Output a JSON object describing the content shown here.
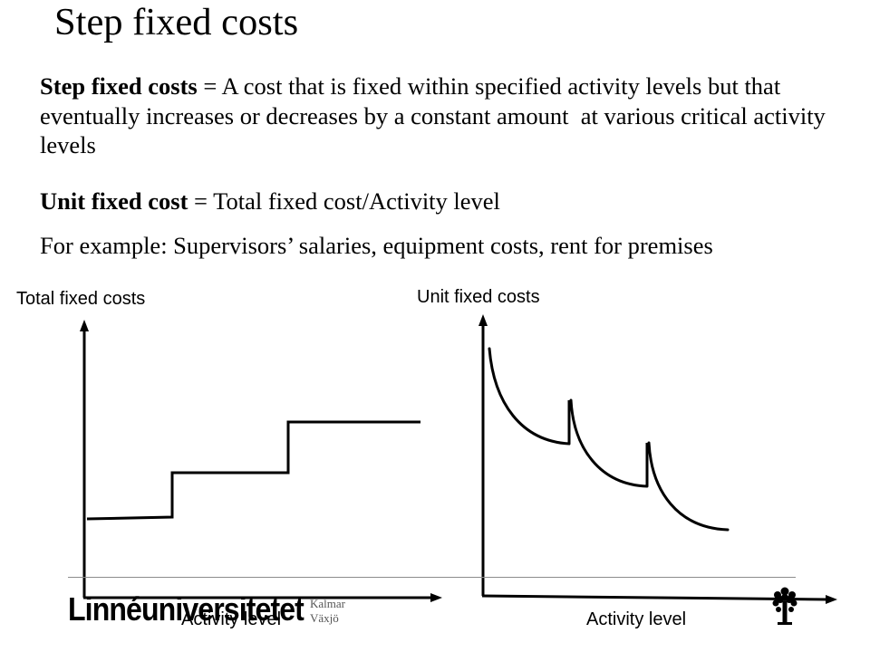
{
  "slide": {
    "title": "Step fixed costs"
  },
  "definition": {
    "term": "Step fixed costs",
    "line1": " = A cost that is fixed within specified activity levels but that",
    "line2": "eventually increases or decreases by a constant amount  at various critical activity",
    "line3": "levels"
  },
  "unit_cost": {
    "term": "Unit fixed cost",
    "text": " = Total fixed cost/Activity level"
  },
  "example": {
    "text": "For example: Supervisors’ salaries, equipment costs, rent for premises"
  },
  "left_chart": {
    "y_label": "Total fixed costs",
    "x_label": "Activity level",
    "shape": "step-increasing"
  },
  "right_chart": {
    "y_label": "Unit fixed costs",
    "x_label": "Activity level",
    "shape": "sawtooth-decreasing"
  },
  "footer": {
    "logo_text": "Linnéuniversitetet",
    "campus_1": "Kalmar",
    "campus_2": "Växjö",
    "logo_icon": "tree-icon"
  },
  "colors": {
    "text": "#000000",
    "divider": "#8c8c8c",
    "campus_text": "#555555",
    "background": "#ffffff"
  }
}
